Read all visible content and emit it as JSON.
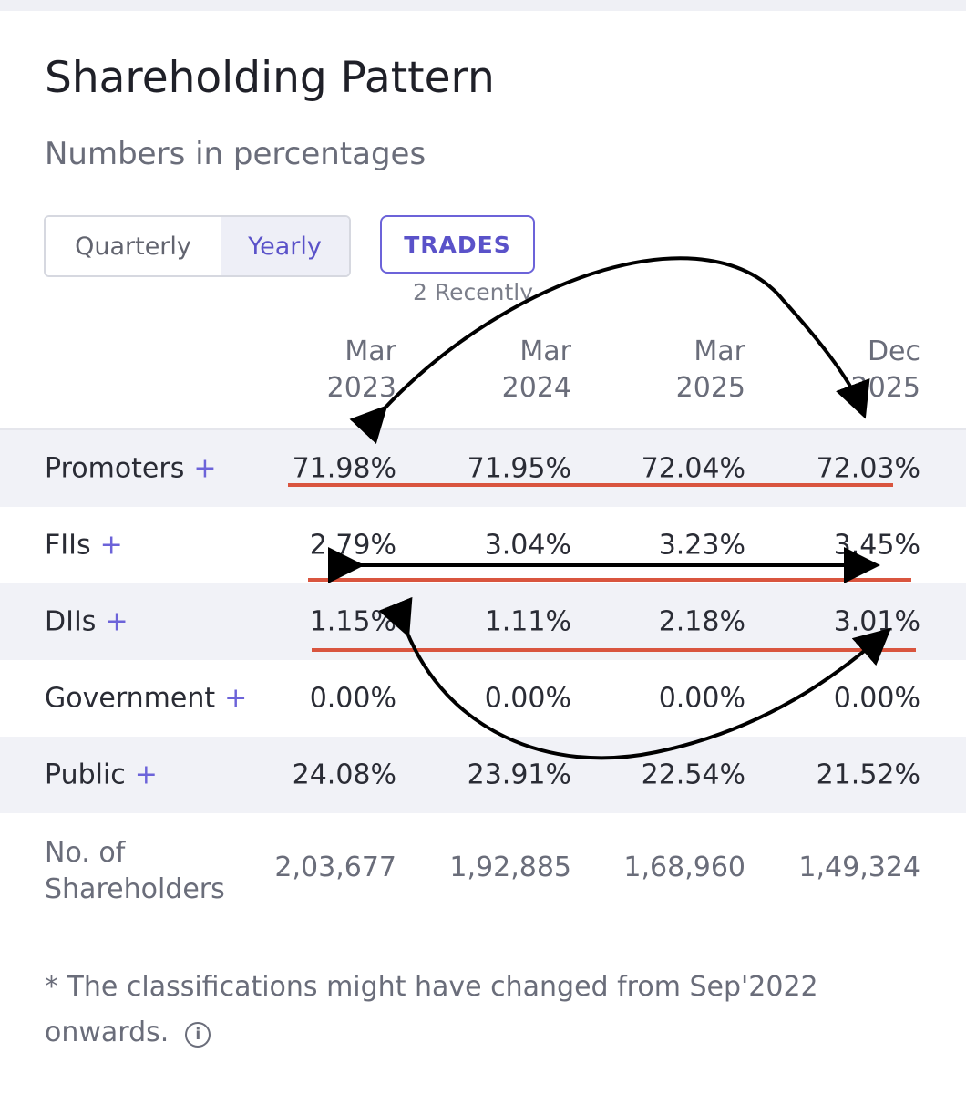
{
  "header": {
    "title": "Shareholding Pattern",
    "subtitle": "Numbers in percentages"
  },
  "toggle": {
    "quarterly_label": "Quarterly",
    "yearly_label": "Yearly",
    "selected": "Yearly"
  },
  "trades": {
    "label": "TRADES",
    "note": "2 Recently"
  },
  "columns": [
    {
      "month": "Mar",
      "year": "2023"
    },
    {
      "month": "Mar",
      "year": "2024"
    },
    {
      "month": "Mar",
      "year": "2025"
    },
    {
      "month": "Dec",
      "year": "2025"
    }
  ],
  "rows": [
    {
      "label": "Promoters",
      "plus": "+",
      "values": [
        "71.98%",
        "71.95%",
        "72.04%",
        "72.03%"
      ]
    },
    {
      "label": "FIIs",
      "plus": "+",
      "values": [
        "2.79%",
        "3.04%",
        "3.23%",
        "3.45%"
      ]
    },
    {
      "label": "DIIs",
      "plus": "+",
      "values": [
        "1.15%",
        "1.11%",
        "2.18%",
        "3.01%"
      ]
    },
    {
      "label": "Government",
      "plus": "+",
      "values": [
        "0.00%",
        "0.00%",
        "0.00%",
        "0.00%"
      ]
    },
    {
      "label": "Public",
      "plus": "+",
      "values": [
        "24.08%",
        "23.91%",
        "22.54%",
        "21.52%"
      ]
    }
  ],
  "shareholders": {
    "label_line1": "No. of",
    "label_line2": "Shareholders",
    "values": [
      "2,03,677",
      "1,92,885",
      "1,68,960",
      "1,49,324"
    ]
  },
  "footnote": {
    "text": "* The classifications might have changed from Sep'2022 onwards.",
    "info_icon": "info-circle-icon"
  },
  "annotations": {
    "underline_color": "#d9553f",
    "arrow_color": "#000000"
  }
}
